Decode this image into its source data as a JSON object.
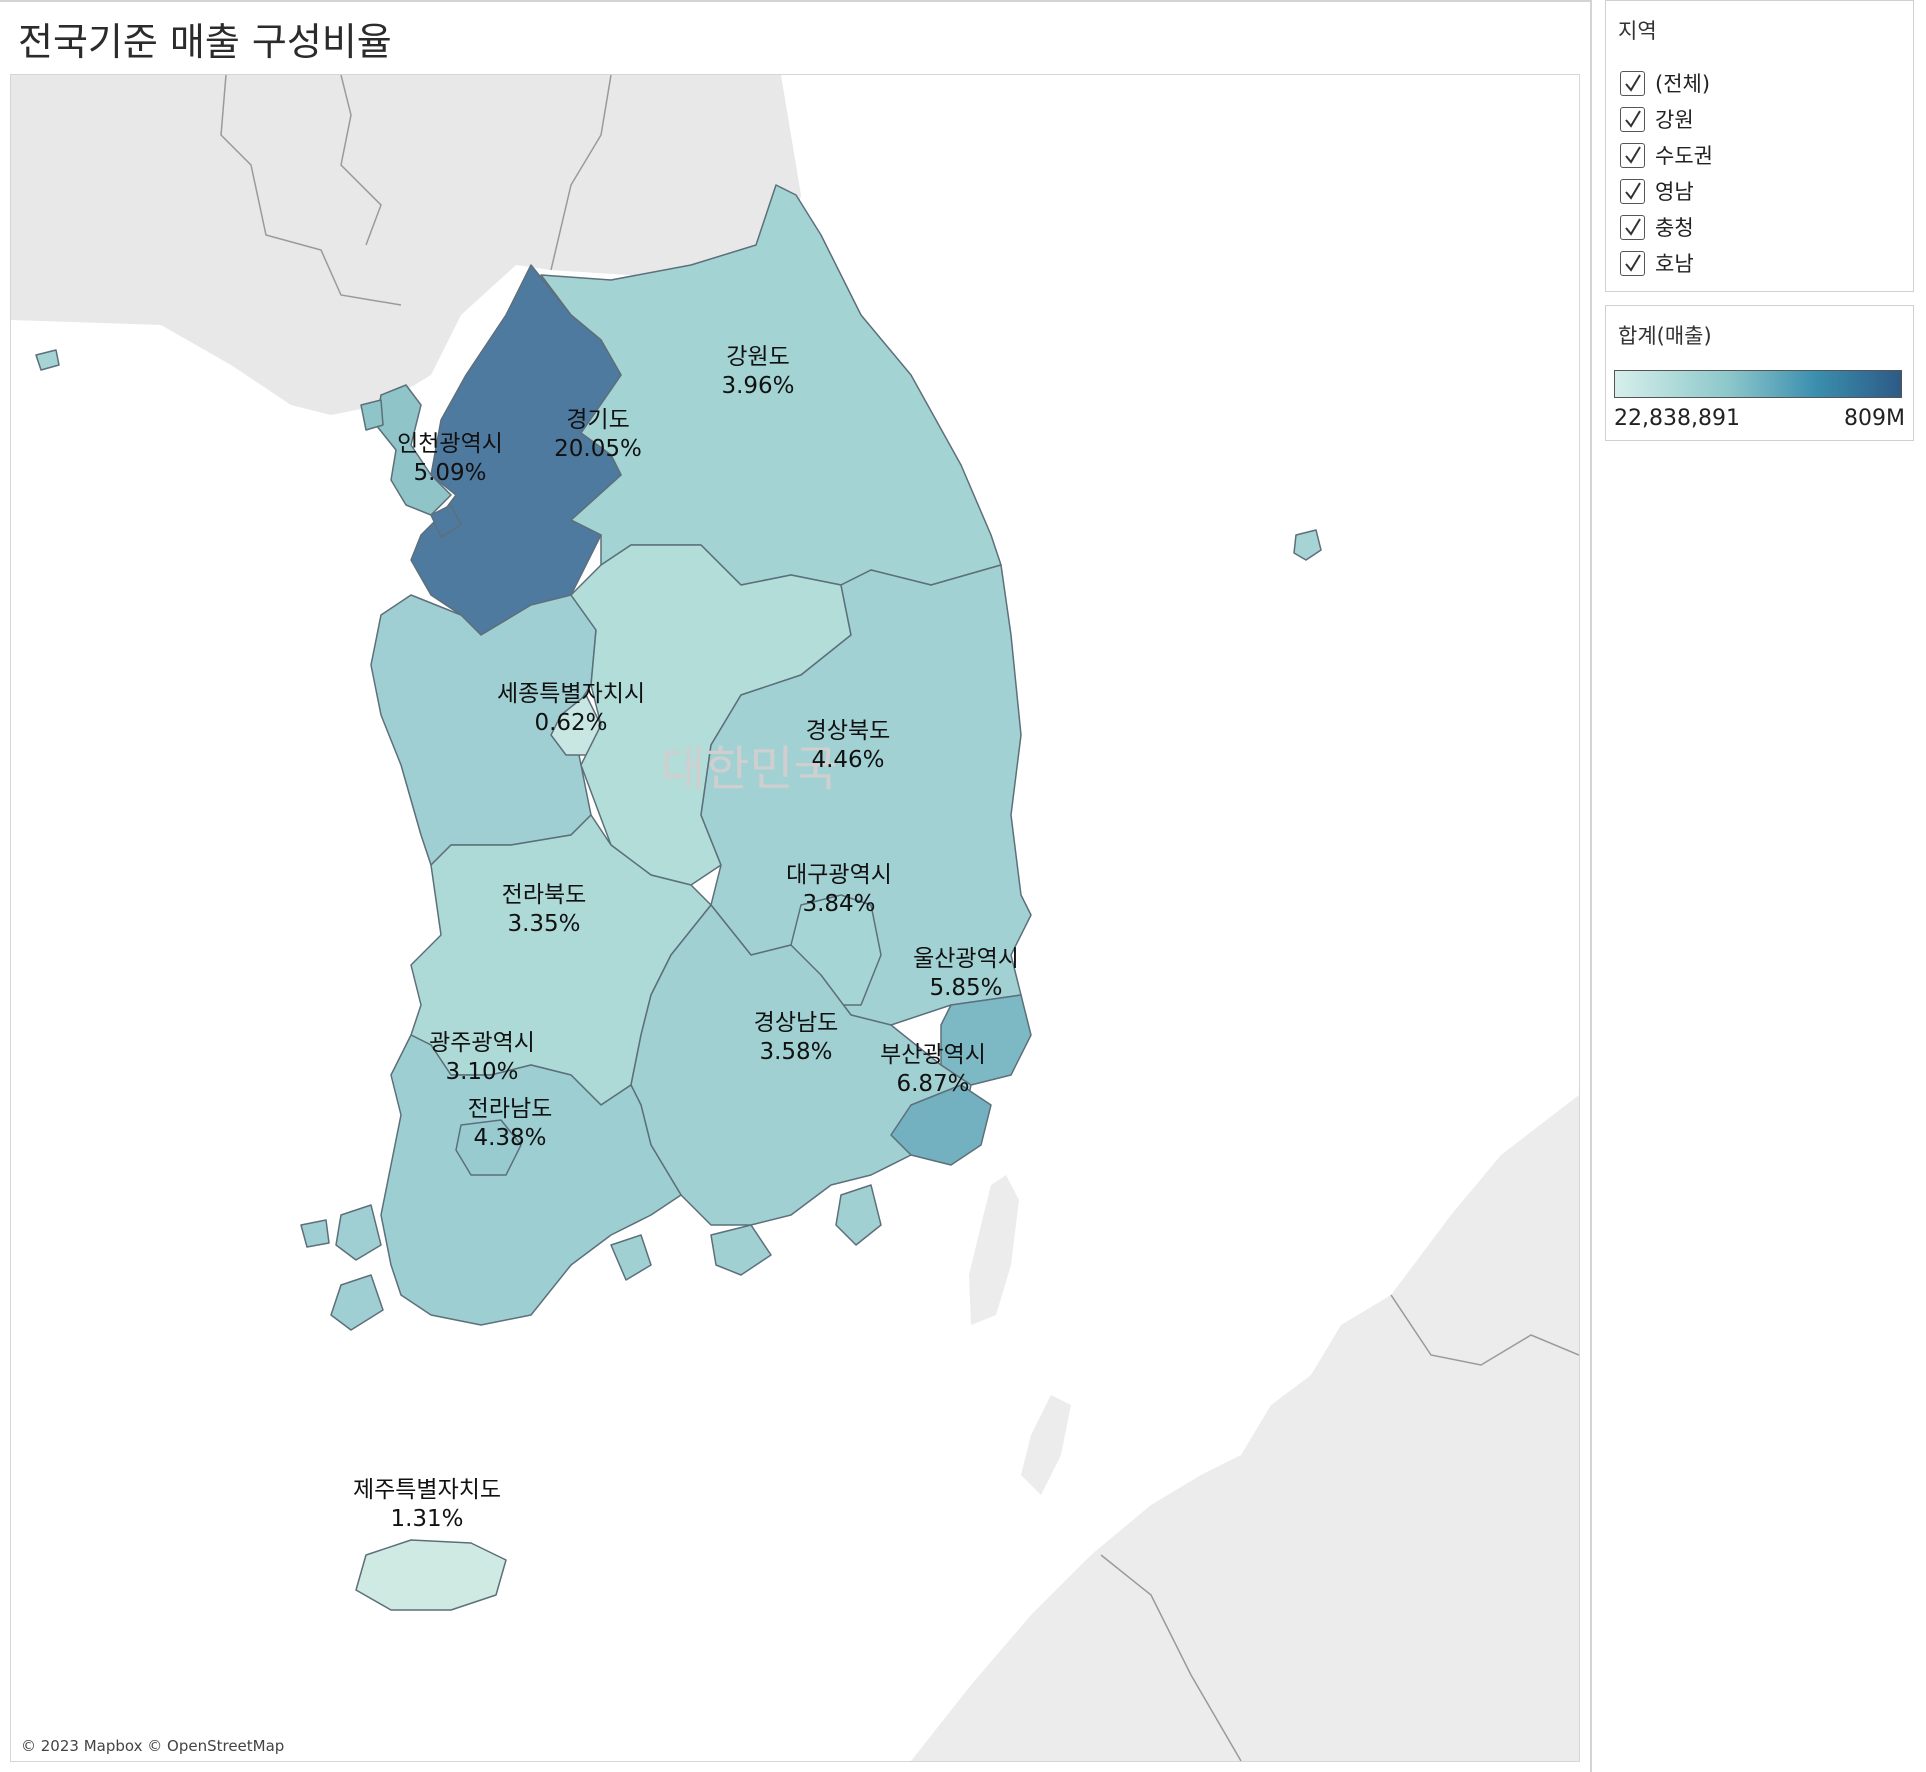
{
  "title": "전국기준 매출 구성비율",
  "map": {
    "attribution": "© 2023 Mapbox © OpenStreetMap",
    "country_label": "대한민국",
    "regions": [
      {
        "name": "경기도",
        "pct": "20.05%"
      },
      {
        "name": "인천광역시",
        "pct": "5.09%"
      },
      {
        "name": "강원도",
        "pct": "3.96%"
      },
      {
        "name": "세종특별자치시",
        "pct": "0.62%"
      },
      {
        "name": "경상북도",
        "pct": "4.46%"
      },
      {
        "name": "대구광역시",
        "pct": "3.84%"
      },
      {
        "name": "전라북도",
        "pct": "3.35%"
      },
      {
        "name": "울산광역시",
        "pct": "5.85%"
      },
      {
        "name": "경상남도",
        "pct": "3.58%"
      },
      {
        "name": "부산광역시",
        "pct": "6.87%"
      },
      {
        "name": "광주광역시",
        "pct": "3.10%"
      },
      {
        "name": "전라남도",
        "pct": "4.38%"
      },
      {
        "name": "제주특별자치도",
        "pct": "1.31%"
      }
    ]
  },
  "filter": {
    "title": "지역",
    "items": [
      {
        "label": "(전체)",
        "checked": true
      },
      {
        "label": "강원",
        "checked": true
      },
      {
        "label": "수도권",
        "checked": true
      },
      {
        "label": "영남",
        "checked": true
      },
      {
        "label": "충청",
        "checked": true
      },
      {
        "label": "호남",
        "checked": true
      }
    ]
  },
  "legend": {
    "title": "합계(매출)",
    "min": "22,838,891",
    "max": "809M",
    "colors": {
      "low": "#d6efeb",
      "mid": "#3b8faf",
      "high": "#2d5a86"
    }
  }
}
